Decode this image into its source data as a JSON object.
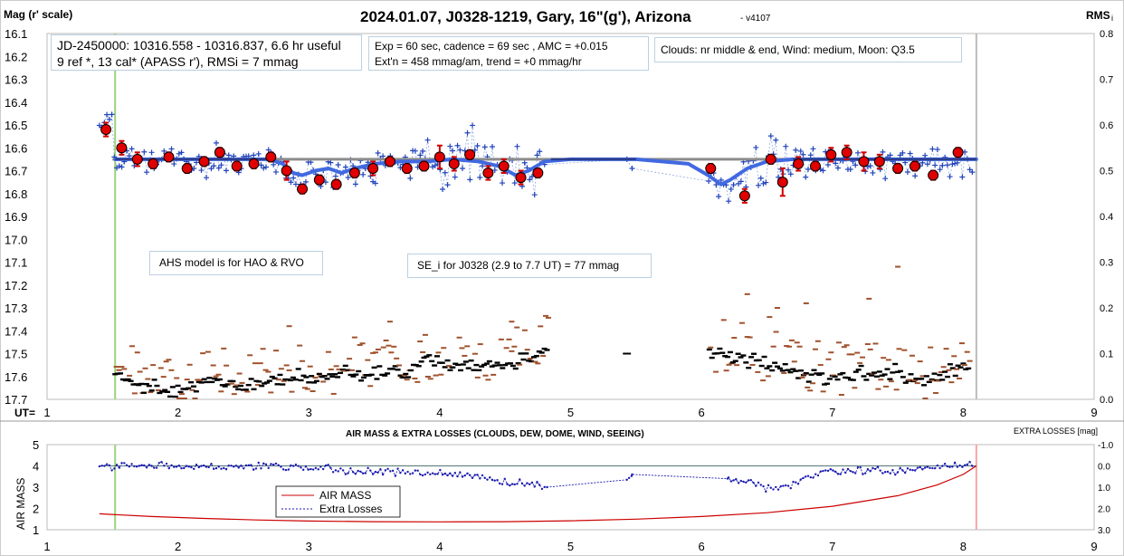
{
  "title": "2024.01.07, J0328-1219, Gary, 16\"(g'), Arizona",
  "version": "- v4107",
  "top_chart": {
    "left_axis_title": "Mag (r' scale)",
    "right_axis_title": "RMS",
    "right_axis_title_sub": "i",
    "x_axis_prefix": "UT=",
    "info_box_1_line1": "JD-2450000: 10316.558 - 10316.837, 6.6 hr useful",
    "info_box_1_line2": "9 ref *, 13 cal*  (APASS r'), RMSi = 7 mmag",
    "info_box_2_line1": "Exp = 60 sec, cadence = 69 sec , AMC = +0.015",
    "info_box_2_line2": "Ext'n = 458 mmag/am, trend = +0 mmag/hr",
    "info_box_3": "Clouds: nr middle & end, Wind:  medium,  Moon:  Q3.5",
    "note_model": "AHS model is for HAO & RVO",
    "note_se": "SE_i for J0328 (2.9 to 7.7 UT) = 77 mmag"
  },
  "bottom_chart": {
    "title": "AIR MASS & EXTRA LOSSES (CLOUDS, DEW, DOME, WIND, SEEING)",
    "left_axis_title": "AIR MASS",
    "right_axis_title": "EXTRA LOSSES [mag]",
    "legend_airmass": "AIR MASS",
    "legend_losses": "Extra Losses"
  },
  "colors": {
    "model": "#4169e1",
    "average": "#8c8c8c",
    "points": "#2244bb",
    "binned": "#e00000",
    "rms_dash": "#000000",
    "rms_brown": "#a0522d",
    "start_line": "#9bd37a",
    "end_line": "#bbbbbb",
    "end_line_bottom": "#f4a6a6",
    "airmass": "#cc0000",
    "losses": "#1a1ab0"
  },
  "chart_data": [
    {
      "type": "scatter",
      "title": "2024.01.07, J0328-1219, Gary, 16\"(g'), Arizona",
      "xlabel": "UT",
      "ylabel": "Mag (r' scale)",
      "y2label": "RMS i",
      "xlim": [
        1,
        9
      ],
      "ylim": [
        16.1,
        17.7
      ],
      "y_inverted": true,
      "y2lim": [
        0.0,
        0.8
      ],
      "x_ticks": [
        1,
        2,
        3,
        4,
        5,
        6,
        7,
        8,
        9
      ],
      "y_ticks": [
        "16.1",
        "16.2",
        "16.3",
        "16.4",
        "16.5",
        "16.6",
        "16.7",
        "16.8",
        "16.9",
        "17.0",
        "17.1",
        "17.2",
        "17.3",
        "17.4",
        "17.5",
        "17.6",
        "17.7"
      ],
      "y2_ticks": [
        "0.8",
        "0.7",
        "0.6",
        "0.5",
        "0.4",
        "0.3",
        "0.2",
        "0.1",
        "0.0"
      ],
      "vertical_lines": {
        "start_ut": 1.52,
        "end_ut": 8.1
      },
      "average_mag": 16.65,
      "average_range": [
        1.5,
        8.1
      ],
      "binned_points": [
        {
          "x": 1.45,
          "y": 16.52,
          "err": 0.03
        },
        {
          "x": 1.57,
          "y": 16.6,
          "err": 0.03
        },
        {
          "x": 1.69,
          "y": 16.65,
          "err": 0.03
        },
        {
          "x": 1.81,
          "y": 16.67,
          "err": 0.02
        },
        {
          "x": 1.93,
          "y": 16.64,
          "err": 0.02
        },
        {
          "x": 2.07,
          "y": 16.69,
          "err": 0.02
        },
        {
          "x": 2.2,
          "y": 16.66,
          "err": 0.02
        },
        {
          "x": 2.32,
          "y": 16.62,
          "err": 0.02
        },
        {
          "x": 2.45,
          "y": 16.68,
          "err": 0.02
        },
        {
          "x": 2.58,
          "y": 16.67,
          "err": 0.02
        },
        {
          "x": 2.71,
          "y": 16.64,
          "err": 0.02
        },
        {
          "x": 2.83,
          "y": 16.7,
          "err": 0.04
        },
        {
          "x": 2.95,
          "y": 16.78,
          "err": 0.02
        },
        {
          "x": 3.08,
          "y": 16.74,
          "err": 0.02
        },
        {
          "x": 3.21,
          "y": 16.76,
          "err": 0.02
        },
        {
          "x": 3.35,
          "y": 16.71,
          "err": 0.02
        },
        {
          "x": 3.49,
          "y": 16.69,
          "err": 0.03
        },
        {
          "x": 3.62,
          "y": 16.66,
          "err": 0.02
        },
        {
          "x": 3.75,
          "y": 16.69,
          "err": 0.02
        },
        {
          "x": 3.88,
          "y": 16.68,
          "err": 0.02
        },
        {
          "x": 4.0,
          "y": 16.64,
          "err": 0.05
        },
        {
          "x": 4.11,
          "y": 16.67,
          "err": 0.03
        },
        {
          "x": 4.23,
          "y": 16.63,
          "err": 0.02
        },
        {
          "x": 4.37,
          "y": 16.71,
          "err": 0.03
        },
        {
          "x": 4.49,
          "y": 16.68,
          "err": 0.03
        },
        {
          "x": 4.62,
          "y": 16.73,
          "err": 0.03
        },
        {
          "x": 4.75,
          "y": 16.71,
          "err": 0.02
        },
        {
          "x": 6.07,
          "y": 16.69,
          "err": 0.02
        },
        {
          "x": 6.33,
          "y": 16.81,
          "err": 0.03
        },
        {
          "x": 6.53,
          "y": 16.65,
          "err": 0.02
        },
        {
          "x": 6.62,
          "y": 16.75,
          "err": 0.06
        },
        {
          "x": 6.74,
          "y": 16.67,
          "err": 0.03
        },
        {
          "x": 6.87,
          "y": 16.68,
          "err": 0.02
        },
        {
          "x": 6.99,
          "y": 16.63,
          "err": 0.03
        },
        {
          "x": 7.11,
          "y": 16.62,
          "err": 0.03
        },
        {
          "x": 7.24,
          "y": 16.66,
          "err": 0.04
        },
        {
          "x": 7.36,
          "y": 16.66,
          "err": 0.03
        },
        {
          "x": 7.5,
          "y": 16.69,
          "err": 0.02
        },
        {
          "x": 7.63,
          "y": 16.68,
          "err": 0.02
        },
        {
          "x": 7.77,
          "y": 16.72,
          "err": 0.02
        },
        {
          "x": 7.96,
          "y": 16.62,
          "err": 0.02
        }
      ],
      "model_curve": [
        [
          1.52,
          16.65
        ],
        [
          2.7,
          16.65
        ],
        [
          2.8,
          16.67
        ],
        [
          2.88,
          16.71
        ],
        [
          2.95,
          16.72
        ],
        [
          3.05,
          16.7
        ],
        [
          3.15,
          16.69
        ],
        [
          3.25,
          16.71
        ],
        [
          3.35,
          16.69
        ],
        [
          3.5,
          16.67
        ],
        [
          3.7,
          16.66
        ],
        [
          3.9,
          16.66
        ],
        [
          4.1,
          16.65
        ],
        [
          4.3,
          16.66
        ],
        [
          4.45,
          16.68
        ],
        [
          4.58,
          16.72
        ],
        [
          4.68,
          16.7
        ],
        [
          4.8,
          16.66
        ],
        [
          5.0,
          16.65
        ],
        [
          5.5,
          16.65
        ],
        [
          5.9,
          16.67
        ],
        [
          6.05,
          16.72
        ],
        [
          6.15,
          16.76
        ],
        [
          6.22,
          16.74
        ],
        [
          6.35,
          16.69
        ],
        [
          6.5,
          16.66
        ],
        [
          6.7,
          16.65
        ],
        [
          8.1,
          16.65
        ]
      ],
      "rms_dash_trend": [
        [
          1.52,
          0.06
        ],
        [
          1.7,
          0.03
        ],
        [
          1.9,
          0.02
        ],
        [
          2.1,
          0.03
        ],
        [
          2.3,
          0.04
        ],
        [
          2.5,
          0.03
        ],
        [
          2.7,
          0.04
        ],
        [
          2.9,
          0.05
        ],
        [
          3.1,
          0.05
        ],
        [
          3.3,
          0.06
        ],
        [
          3.5,
          0.06
        ],
        [
          3.7,
          0.06
        ],
        [
          3.9,
          0.08
        ],
        [
          4.1,
          0.08
        ],
        [
          4.3,
          0.07
        ],
        [
          4.5,
          0.08
        ],
        [
          4.7,
          0.09
        ],
        [
          4.8,
          0.11
        ],
        [
          6.1,
          0.1
        ],
        [
          6.3,
          0.09
        ],
        [
          6.5,
          0.08
        ],
        [
          6.7,
          0.06
        ],
        [
          6.9,
          0.05
        ],
        [
          7.1,
          0.05
        ],
        [
          7.3,
          0.06
        ],
        [
          7.5,
          0.06
        ],
        [
          7.7,
          0.04
        ],
        [
          7.9,
          0.06
        ],
        [
          8.05,
          0.08
        ]
      ]
    },
    {
      "type": "line",
      "title": "AIR MASS & EXTRA LOSSES (CLOUDS, DEW, DOME, WIND, SEEING)",
      "xlabel": "UT",
      "ylabel": "AIR MASS",
      "y2label": "EXTRA LOSSES [mag]",
      "xlim": [
        1,
        9
      ],
      "ylim": [
        1,
        5
      ],
      "y2lim": [
        -1.0,
        3.0
      ],
      "y2_inverted": true,
      "x_ticks": [
        1,
        2,
        3,
        4,
        5,
        6,
        7,
        8,
        9
      ],
      "y_ticks": [
        1,
        2,
        3,
        4,
        5
      ],
      "y2_ticks": [
        "-1.0",
        "0.0",
        "1.0",
        "2.0",
        "3.0"
      ],
      "vertical_lines": {
        "start_ut": 1.52,
        "end_ut": 8.1
      },
      "series": [
        {
          "name": "AIR MASS",
          "points": [
            [
              1.4,
              1.75
            ],
            [
              1.8,
              1.62
            ],
            [
              2.2,
              1.53
            ],
            [
              2.6,
              1.46
            ],
            [
              3.0,
              1.41
            ],
            [
              3.5,
              1.38
            ],
            [
              4.0,
              1.37
            ],
            [
              4.5,
              1.38
            ],
            [
              5.0,
              1.42
            ],
            [
              5.5,
              1.5
            ],
            [
              6.0,
              1.62
            ],
            [
              6.5,
              1.8
            ],
            [
              7.0,
              2.1
            ],
            [
              7.5,
              2.6
            ],
            [
              7.8,
              3.1
            ],
            [
              8.0,
              3.6
            ],
            [
              8.1,
              4.0
            ]
          ]
        },
        {
          "name": "Extra Losses",
          "points": [
            [
              1.4,
              0.1
            ],
            [
              1.6,
              -0.05
            ],
            [
              1.8,
              0.0
            ],
            [
              2.0,
              0.0
            ],
            [
              2.2,
              0.05
            ],
            [
              2.4,
              0.05
            ],
            [
              2.6,
              0.0
            ],
            [
              2.8,
              0.05
            ],
            [
              3.0,
              0.1
            ],
            [
              3.2,
              0.2
            ],
            [
              3.4,
              0.25
            ],
            [
              3.6,
              0.3
            ],
            [
              3.8,
              0.35
            ],
            [
              4.0,
              0.35
            ],
            [
              4.2,
              0.4
            ],
            [
              4.4,
              0.6
            ],
            [
              4.6,
              0.8
            ],
            [
              4.8,
              1.0
            ],
            [
              5.43,
              0.65
            ],
            [
              5.47,
              0.4
            ],
            [
              6.2,
              0.6
            ],
            [
              6.4,
              0.8
            ],
            [
              6.5,
              1.1
            ],
            [
              6.7,
              0.9
            ],
            [
              6.9,
              0.3
            ],
            [
              7.2,
              0.25
            ],
            [
              7.5,
              0.2
            ],
            [
              7.8,
              0.1
            ],
            [
              8.0,
              -0.1
            ],
            [
              8.1,
              0.0
            ]
          ]
        }
      ]
    }
  ]
}
